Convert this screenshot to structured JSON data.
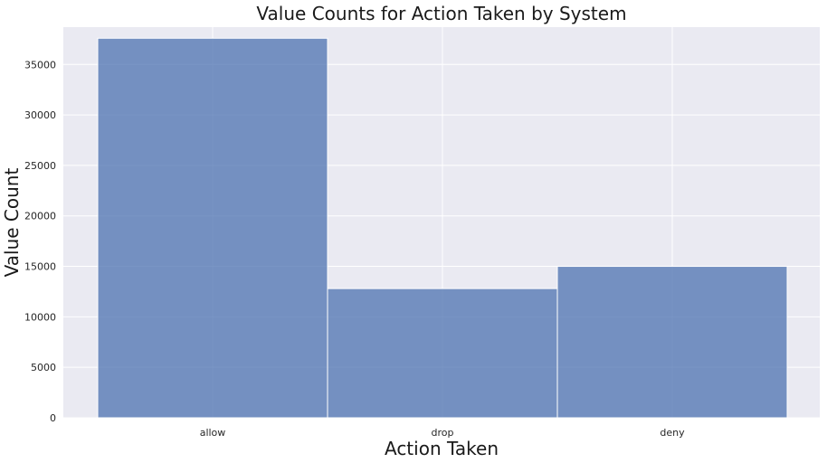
{
  "chart_data": {
    "type": "bar",
    "title": "Value Counts for Action Taken by System",
    "xlabel": "Action Taken",
    "ylabel": "Value Count",
    "categories": [
      "allow",
      "drop",
      "deny"
    ],
    "values": [
      37600,
      12800,
      15000
    ],
    "ylim": [
      0,
      38700
    ],
    "yticks": [
      0,
      5000,
      10000,
      15000,
      20000,
      25000,
      30000,
      35000
    ],
    "grid": true,
    "legend": "none",
    "colors": {
      "plot_background": "#eaeaf2",
      "bar": "#4c72b0",
      "grid": "#ffffff"
    }
  }
}
